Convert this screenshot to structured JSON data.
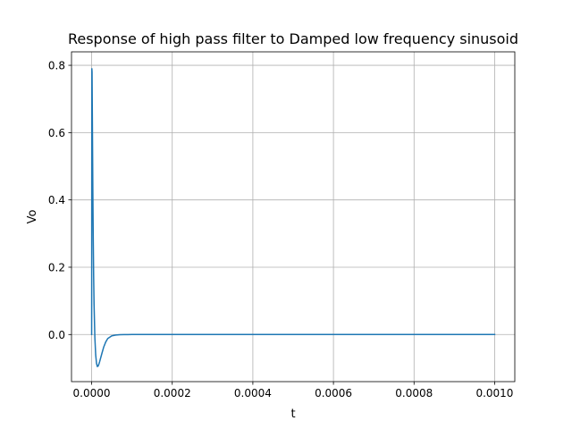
{
  "chart_data": {
    "type": "line",
    "title": "Response of high pass filter to Damped low frequency sinusoid",
    "xlabel": "t",
    "ylabel": "Vo",
    "xlim": [
      -5e-05,
      0.00105
    ],
    "ylim": [
      -0.14,
      0.84
    ],
    "xticks": [
      0.0,
      0.0002,
      0.0004,
      0.0006,
      0.0008,
      0.001
    ],
    "xtick_labels": [
      "0.0000",
      "0.0002",
      "0.0004",
      "0.0006",
      "0.0008",
      "0.0010"
    ],
    "yticks": [
      0.0,
      0.2,
      0.4,
      0.6,
      0.8
    ],
    "ytick_labels": [
      "0.0",
      "0.2",
      "0.4",
      "0.6",
      "0.8"
    ],
    "grid": true,
    "series": [
      {
        "color": "#1f77b4",
        "x": [
          0.0,
          5e-07,
          1e-06,
          2e-06,
          3e-06,
          4e-06,
          5e-06,
          6e-06,
          8e-06,
          1e-05,
          1.2e-05,
          1.4e-05,
          1.6e-05,
          1.8e-05,
          2e-05,
          2.5e-05,
          3e-05,
          3.5e-05,
          4e-05,
          5e-05,
          6e-05,
          7e-05,
          8e-05,
          9e-05,
          0.0001,
          0.00012,
          0.00015,
          0.0002,
          0.0003,
          0.0005,
          0.0007,
          0.001
        ],
        "y": [
          0.0,
          0.79,
          0.78,
          0.6,
          0.42,
          0.28,
          0.17,
          0.09,
          -0.01,
          -0.06,
          -0.085,
          -0.095,
          -0.094,
          -0.088,
          -0.08,
          -0.058,
          -0.037,
          -0.022,
          -0.012,
          -0.004,
          -0.0015,
          -0.0005,
          -0.0002,
          -0.0001,
          0.0,
          0.0,
          0.0,
          0.0,
          0.0,
          0.0,
          0.0,
          0.0
        ]
      }
    ]
  }
}
